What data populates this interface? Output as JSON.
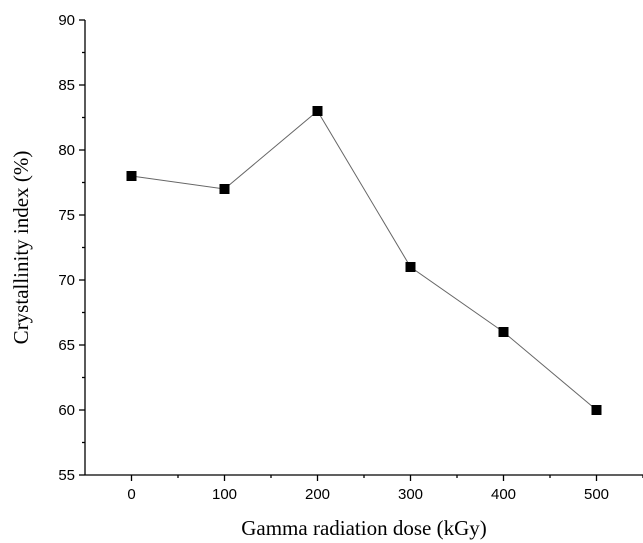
{
  "chart_data": {
    "type": "line",
    "title": "",
    "xlabel": "Gamma radiation dose (kGy)",
    "ylabel": "Crystallinity index (%)",
    "x": [
      0,
      100,
      200,
      300,
      400,
      500
    ],
    "x_tick_labels": [
      "0",
      "100",
      "200",
      "300",
      "400",
      "500"
    ],
    "y_tick_labels": [
      "55",
      "60",
      "65",
      "70",
      "75",
      "80",
      "85",
      "90"
    ],
    "xlim": [
      -50,
      550
    ],
    "ylim": [
      55,
      90
    ],
    "grid": false,
    "legend": "none",
    "series": [
      {
        "values": [
          78,
          77,
          83,
          71,
          66,
          60
        ],
        "color": "#000000",
        "line_color": "#666666",
        "marker": "square"
      }
    ]
  }
}
